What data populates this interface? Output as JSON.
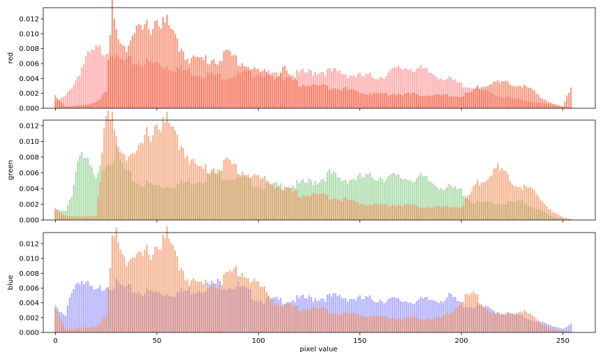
{
  "chart_data": [
    {
      "type": "bar",
      "ylabel": "red",
      "ylim": [
        0,
        0.0135
      ],
      "yticks": [
        "0.000",
        "0.002",
        "0.004",
        "0.006",
        "0.008",
        "0.010",
        "0.012"
      ],
      "xlim": [
        -6,
        266
      ],
      "colors": {
        "a": "#ff8080",
        "b": "#f0603a"
      },
      "series": [
        {
          "values_by_x": [
            [
              0,
              0.0008
            ],
            [
              5,
              0.0015
            ],
            [
              10,
              0.0035
            ],
            [
              15,
              0.0062
            ],
            [
              20,
              0.0072
            ],
            [
              25,
              0.0074
            ],
            [
              28,
              0.0075
            ],
            [
              30,
              0.006
            ],
            [
              35,
              0.0058
            ],
            [
              40,
              0.0058
            ],
            [
              50,
              0.0056
            ],
            [
              60,
              0.005
            ],
            [
              70,
              0.0044
            ],
            [
              80,
              0.004
            ],
            [
              90,
              0.0042
            ],
            [
              100,
              0.0045
            ],
            [
              110,
              0.004
            ],
            [
              120,
              0.0043
            ],
            [
              130,
              0.0047
            ],
            [
              140,
              0.0045
            ],
            [
              150,
              0.004
            ],
            [
              160,
              0.004
            ],
            [
              170,
              0.005
            ],
            [
              175,
              0.0052
            ],
            [
              180,
              0.0048
            ],
            [
              190,
              0.004
            ],
            [
              200,
              0.003
            ],
            [
              210,
              0.0022
            ],
            [
              220,
              0.0015
            ],
            [
              230,
              0.001
            ],
            [
              240,
              0.0006
            ],
            [
              250,
              0.0002
            ],
            [
              254,
              0.0001
            ]
          ]
        },
        {
          "values_by_x": [
            [
              0,
              0.0016
            ],
            [
              5,
              0.0002
            ],
            [
              10,
              0.0003
            ],
            [
              15,
              0.0004
            ],
            [
              20,
              0.0008
            ],
            [
              25,
              0.002
            ],
            [
              28,
              0.0125
            ],
            [
              30,
              0.0095
            ],
            [
              35,
              0.008
            ],
            [
              40,
              0.0094
            ],
            [
              45,
              0.01
            ],
            [
              50,
              0.0112
            ],
            [
              55,
              0.0105
            ],
            [
              60,
              0.0082
            ],
            [
              65,
              0.0065
            ],
            [
              70,
              0.006
            ],
            [
              80,
              0.0062
            ],
            [
              85,
              0.0068
            ],
            [
              90,
              0.006
            ],
            [
              100,
              0.0046
            ],
            [
              110,
              0.004
            ],
            [
              112,
              0.0055
            ],
            [
              115,
              0.0038
            ],
            [
              120,
              0.003
            ],
            [
              130,
              0.0028
            ],
            [
              140,
              0.0026
            ],
            [
              150,
              0.002
            ],
            [
              160,
              0.0018
            ],
            [
              170,
              0.0018
            ],
            [
              180,
              0.0017
            ],
            [
              190,
              0.0016
            ],
            [
              200,
              0.0015
            ],
            [
              205,
              0.002
            ],
            [
              210,
              0.003
            ],
            [
              215,
              0.0032
            ],
            [
              220,
              0.0031
            ],
            [
              225,
              0.003
            ],
            [
              230,
              0.0029
            ],
            [
              235,
              0.0022
            ],
            [
              240,
              0.0012
            ],
            [
              245,
              0.0006
            ],
            [
              250,
              0.0002
            ],
            [
              254,
              0.0028
            ]
          ]
        }
      ]
    },
    {
      "type": "bar",
      "ylabel": "green",
      "ylim": [
        0,
        0.0127
      ],
      "yticks": [
        "0.000",
        "0.002",
        "0.004",
        "0.006",
        "0.008",
        "0.010",
        "0.012"
      ],
      "xlim": [
        -6,
        266
      ],
      "colors": {
        "a": "#7fc97f",
        "b": "#f08850"
      },
      "series": [
        {
          "values_by_x": [
            [
              0,
              0.0012
            ],
            [
              5,
              0.001
            ],
            [
              8,
              0.003
            ],
            [
              12,
              0.0086
            ],
            [
              15,
              0.007
            ],
            [
              18,
              0.0058
            ],
            [
              20,
              0.0045
            ],
            [
              22,
              0.006
            ],
            [
              25,
              0.007
            ],
            [
              30,
              0.0078
            ],
            [
              35,
              0.0055
            ],
            [
              40,
              0.0045
            ],
            [
              50,
              0.004
            ],
            [
              60,
              0.0042
            ],
            [
              70,
              0.0048
            ],
            [
              80,
              0.0055
            ],
            [
              90,
              0.005
            ],
            [
              100,
              0.0042
            ],
            [
              110,
              0.004
            ],
            [
              120,
              0.0042
            ],
            [
              130,
              0.0048
            ],
            [
              135,
              0.0055
            ],
            [
              140,
              0.0048
            ],
            [
              150,
              0.005
            ],
            [
              160,
              0.0052
            ],
            [
              170,
              0.005
            ],
            [
              180,
              0.005
            ],
            [
              190,
              0.004
            ],
            [
              200,
              0.0035
            ],
            [
              205,
              0.0022
            ],
            [
              210,
              0.002
            ],
            [
              220,
              0.002
            ],
            [
              230,
              0.0022
            ],
            [
              240,
              0.001
            ],
            [
              245,
              0.0004
            ],
            [
              250,
              0.0002
            ],
            [
              254,
              0.0001
            ]
          ]
        },
        {
          "values_by_x": [
            [
              0,
              0.0014
            ],
            [
              5,
              0.0005
            ],
            [
              10,
              0.0004
            ],
            [
              15,
              0.0004
            ],
            [
              20,
              0.0005
            ],
            [
              25,
              0.012
            ],
            [
              28,
              0.0115
            ],
            [
              30,
              0.0095
            ],
            [
              35,
              0.008
            ],
            [
              40,
              0.0075
            ],
            [
              45,
              0.01
            ],
            [
              50,
              0.0115
            ],
            [
              55,
              0.0115
            ],
            [
              60,
              0.0095
            ],
            [
              65,
              0.008
            ],
            [
              70,
              0.006
            ],
            [
              80,
              0.0062
            ],
            [
              85,
              0.0068
            ],
            [
              90,
              0.006
            ],
            [
              100,
              0.005
            ],
            [
              110,
              0.004
            ],
            [
              120,
              0.003
            ],
            [
              130,
              0.003
            ],
            [
              140,
              0.0026
            ],
            [
              150,
              0.002
            ],
            [
              160,
              0.0018
            ],
            [
              170,
              0.0018
            ],
            [
              180,
              0.0016
            ],
            [
              190,
              0.0015
            ],
            [
              200,
              0.0016
            ],
            [
              210,
              0.005
            ],
            [
              218,
              0.006
            ],
            [
              225,
              0.0045
            ],
            [
              230,
              0.004
            ],
            [
              235,
              0.0035
            ],
            [
              240,
              0.0022
            ],
            [
              245,
              0.001
            ],
            [
              250,
              0.0003
            ],
            [
              254,
              0.0001
            ]
          ]
        }
      ]
    },
    {
      "type": "bar",
      "ylabel": "blue",
      "xlabel": "pixel value",
      "ylim": [
        0,
        0.0135
      ],
      "yticks": [
        "0.000",
        "0.002",
        "0.004",
        "0.006",
        "0.008",
        "0.010",
        "0.012"
      ],
      "xlim": [
        -6,
        266
      ],
      "xticks": [
        "0",
        "50",
        "100",
        "150",
        "200",
        "250"
      ],
      "colors": {
        "a": "#8080ff",
        "b": "#f08850"
      },
      "series": [
        {
          "values_by_x": [
            [
              0,
              0.003
            ],
            [
              5,
              0.002
            ],
            [
              8,
              0.0055
            ],
            [
              12,
              0.0068
            ],
            [
              15,
              0.006
            ],
            [
              20,
              0.005
            ],
            [
              25,
              0.0062
            ],
            [
              30,
              0.006
            ],
            [
              35,
              0.0055
            ],
            [
              40,
              0.0052
            ],
            [
              50,
              0.005
            ],
            [
              60,
              0.005
            ],
            [
              70,
              0.0055
            ],
            [
              80,
              0.0062
            ],
            [
              90,
              0.0058
            ],
            [
              100,
              0.0042
            ],
            [
              110,
              0.004
            ],
            [
              120,
              0.0042
            ],
            [
              130,
              0.0044
            ],
            [
              140,
              0.0045
            ],
            [
              150,
              0.0042
            ],
            [
              160,
              0.0042
            ],
            [
              170,
              0.004
            ],
            [
              180,
              0.004
            ],
            [
              190,
              0.0042
            ],
            [
              195,
              0.0045
            ],
            [
              200,
              0.0035
            ],
            [
              210,
              0.0032
            ],
            [
              220,
              0.0025
            ],
            [
              230,
              0.002
            ],
            [
              240,
              0.0012
            ],
            [
              245,
              0.0008
            ],
            [
              250,
              0.0005
            ],
            [
              254,
              0.001
            ]
          ]
        },
        {
          "values_by_x": [
            [
              0,
              0.0033
            ],
            [
              5,
              0.0004
            ],
            [
              10,
              0.0005
            ],
            [
              15,
              0.0006
            ],
            [
              20,
              0.0008
            ],
            [
              25,
              0.002
            ],
            [
              28,
              0.011
            ],
            [
              30,
              0.0127
            ],
            [
              35,
              0.0095
            ],
            [
              40,
              0.009
            ],
            [
              45,
              0.01
            ],
            [
              50,
              0.011
            ],
            [
              55,
              0.012
            ],
            [
              60,
              0.009
            ],
            [
              65,
              0.007
            ],
            [
              70,
              0.006
            ],
            [
              80,
              0.0062
            ],
            [
              90,
              0.008
            ],
            [
              100,
              0.006
            ],
            [
              110,
              0.0035
            ],
            [
              120,
              0.003
            ],
            [
              130,
              0.003
            ],
            [
              140,
              0.0025
            ],
            [
              150,
              0.0022
            ],
            [
              160,
              0.002
            ],
            [
              170,
              0.0018
            ],
            [
              180,
              0.0018
            ],
            [
              190,
              0.0018
            ],
            [
              195,
              0.0025
            ],
            [
              200,
              0.004
            ],
            [
              205,
              0.0048
            ],
            [
              210,
              0.004
            ],
            [
              215,
              0.0025
            ],
            [
              220,
              0.002
            ],
            [
              225,
              0.0025
            ],
            [
              230,
              0.0028
            ],
            [
              235,
              0.002
            ],
            [
              240,
              0.001
            ],
            [
              245,
              0.0004
            ],
            [
              250,
              0.0002
            ],
            [
              254,
              0.0001
            ]
          ]
        }
      ]
    }
  ]
}
